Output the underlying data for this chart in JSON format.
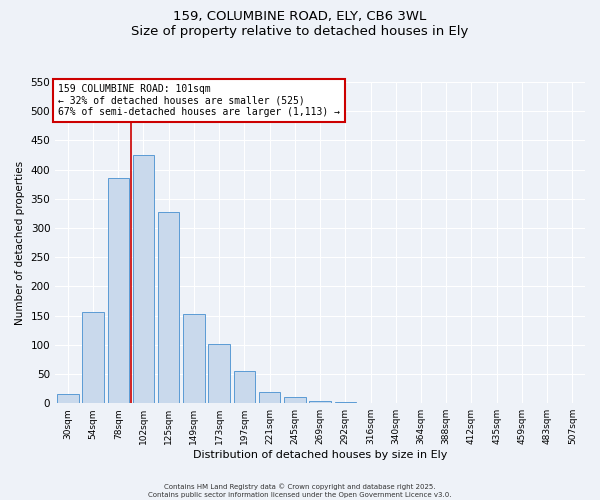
{
  "title": "159, COLUMBINE ROAD, ELY, CB6 3WL",
  "subtitle": "Size of property relative to detached houses in Ely",
  "xlabel": "Distribution of detached houses by size in Ely",
  "ylabel": "Number of detached properties",
  "bin_labels": [
    "30sqm",
    "54sqm",
    "78sqm",
    "102sqm",
    "125sqm",
    "149sqm",
    "173sqm",
    "197sqm",
    "221sqm",
    "245sqm",
    "269sqm",
    "292sqm",
    "316sqm",
    "340sqm",
    "364sqm",
    "388sqm",
    "412sqm",
    "435sqm",
    "459sqm",
    "483sqm",
    "507sqm"
  ],
  "bar_values": [
    15,
    157,
    385,
    425,
    328,
    153,
    102,
    55,
    20,
    10,
    3,
    2,
    1,
    1,
    1,
    0,
    0,
    0,
    0,
    0,
    0
  ],
  "bar_color": "#c9d9ec",
  "bar_edge_color": "#5b9bd5",
  "vline_color": "#cc0000",
  "annotation_title": "159 COLUMBINE ROAD: 101sqm",
  "annotation_line1": "← 32% of detached houses are smaller (525)",
  "annotation_line2": "67% of semi-detached houses are larger (1,113) →",
  "annotation_box_color": "#ffffff",
  "annotation_box_edge": "#cc0000",
  "ylim": [
    0,
    550
  ],
  "yticks": [
    0,
    50,
    100,
    150,
    200,
    250,
    300,
    350,
    400,
    450,
    500,
    550
  ],
  "footer1": "Contains HM Land Registry data © Crown copyright and database right 2025.",
  "footer2": "Contains public sector information licensed under the Open Government Licence v3.0.",
  "bg_color": "#eef2f8",
  "plot_bg_color": "#eef2f8",
  "grid_color": "#ffffff",
  "fig_width": 6.0,
  "fig_height": 5.0,
  "dpi": 100
}
